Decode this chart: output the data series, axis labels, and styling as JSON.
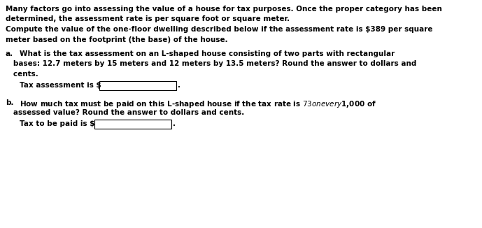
{
  "bg_color": "#ffffff",
  "text_color": "#000000",
  "figsize": [
    6.89,
    3.26
  ],
  "dpi": 100,
  "intro_lines": [
    "Many factors go into assessing the value of a house for tax purposes. Once the proper category has been",
    "determined, the assessment rate is per square foot or square meter.",
    "Compute the value of the one-floor dwelling described below if the assessment rate is $389 per square",
    "meter based on the footprint (the base) of the house."
  ],
  "part_a_label": "a.",
  "part_a_line1": "What is the tax assessment on an L-shaped house consisting of two parts with rectangular",
  "part_a_line2": "   bases: 12.7 meters by 15 meters and 12 meters by 13.5 meters? Round the answer to dollars and",
  "part_a_line3": "   cents.",
  "part_a_input_label": "Tax assessment is $",
  "part_b_label": "b.",
  "part_b_line1": "How much tax must be paid on this L-shaped house if the tax rate is $73 on every $1,000 of",
  "part_b_line2": "   assessed value? Round the answer to dollars and cents.",
  "part_b_input_label": "Tax to be paid is $",
  "font_size": 7.5
}
